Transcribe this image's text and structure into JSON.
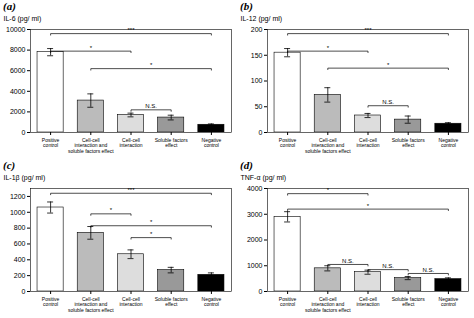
{
  "chart_data": [
    {
      "type": "bar",
      "title": "(a)",
      "ylabel": "IL-6 (pg/ ml)",
      "categories": [
        "Positive\ncontrol",
        "Cell-cell\ninteraction and\nsoluble factors effect",
        "Cell-cell\ninteraction",
        "Soluble factors\neffect",
        "Negative\ncontrol"
      ],
      "values": [
        7800,
        3100,
        1700,
        1450,
        750
      ],
      "errors": [
        350,
        650,
        180,
        230,
        80
      ],
      "colors": [
        "white",
        "#bbbbbb",
        "#dddddd",
        "#999999",
        "black"
      ],
      "ylim": [
        0,
        10000
      ],
      "yticks": [
        0,
        2000,
        4000,
        6000,
        8000,
        10000
      ],
      "grid": false,
      "annotations": [
        {
          "text": "***",
          "y": 9600,
          "from": "Positive\ncontrol",
          "to": "Negative\ncontrol"
        },
        {
          "text": "*",
          "y": 7900,
          "from": "Positive\ncontrol",
          "to": "Cell-cell\ninteraction"
        },
        {
          "text": "N.S.",
          "y": 2200,
          "from": "Cell-cell\ninteraction",
          "to": "Soluble factors\neffect"
        },
        {
          "text": "*",
          "y": 6200,
          "from": "Cell-cell\ninteraction and\nsoluble factors effect",
          "to": "Negative\ncontrol"
        }
      ]
    },
    {
      "type": "bar",
      "title": "(b)",
      "ylabel": "IL-12 (pg/ ml)",
      "categories": [
        "Positive\ncontrol",
        "Cell-cell\ninteraction and\nsoluble factors effect",
        "Cell-cell\ninteraction",
        "Soluble factors\neffect",
        "Negative\ncontrol"
      ],
      "values": [
        155,
        73,
        33,
        25,
        17
      ],
      "errors": [
        8,
        14,
        4,
        7,
        2
      ],
      "colors": [
        "white",
        "#bbbbbb",
        "#dddddd",
        "#999999",
        "black"
      ],
      "ylim": [
        0,
        200
      ],
      "yticks": [
        0,
        50,
        100,
        150,
        200
      ],
      "grid": false,
      "annotations": [
        {
          "text": "***",
          "y": 192,
          "from": "Positive\ncontrol",
          "to": "Negative\ncontrol"
        },
        {
          "text": "*",
          "y": 158,
          "from": "Positive\ncontrol",
          "to": "Cell-cell\ninteraction"
        },
        {
          "text": "N.S.",
          "y": 52,
          "from": "Cell-cell\ninteraction",
          "to": "Soluble factors\neffect"
        },
        {
          "text": "*",
          "y": 125,
          "from": "Cell-cell\ninteraction and\nsoluble factors effect",
          "to": "Negative\ncontrol"
        }
      ]
    },
    {
      "type": "bar",
      "title": "(c)",
      "ylabel": "IL-1β (pg/ ml)",
      "categories": [
        "Positive\ncontrol",
        "Cell-cell\ninteraction and\nsoluble factors effect",
        "Cell-cell\ninteraction",
        "Soluble factors\neffect",
        "Negative\ncontrol"
      ],
      "values": [
        1060,
        740,
        470,
        270,
        210
      ],
      "errors": [
        70,
        80,
        55,
        35,
        25
      ],
      "colors": [
        "white",
        "#bbbbbb",
        "#dddddd",
        "#999999",
        "black"
      ],
      "ylim": [
        0,
        1300
      ],
      "yticks": [
        0,
        200,
        400,
        600,
        800,
        1000,
        1200
      ],
      "grid": false,
      "annotations": [
        {
          "text": "***",
          "y": 1240,
          "from": "Positive\ncontrol",
          "to": "Negative\ncontrol"
        },
        {
          "text": "*",
          "y": 980,
          "from": "Cell-cell\ninteraction and\nsoluble factors effect",
          "to": "Cell-cell\ninteraction"
        },
        {
          "text": "*",
          "y": 680,
          "from": "Cell-cell\ninteraction",
          "to": "Soluble factors\neffect"
        },
        {
          "text": "*",
          "y": 830,
          "from": "Cell-cell\ninteraction and\nsoluble factors effect",
          "to": "Negative\ncontrol"
        }
      ]
    },
    {
      "type": "bar",
      "title": "(d)",
      "ylabel": "TNF-α (pg/ ml)",
      "categories": [
        "Positive\ncontrol",
        "Cell-cell\ninteraction and\nsoluble factors effect",
        "Cell-cell\ninteraction",
        "Soluble factors\neffect",
        "Negative\ncontrol"
      ],
      "values": [
        2900,
        900,
        750,
        520,
        480
      ],
      "errors": [
        200,
        100,
        80,
        60,
        50
      ],
      "colors": [
        "white",
        "#bbbbbb",
        "#dddddd",
        "#999999",
        "black"
      ],
      "ylim": [
        0,
        4000
      ],
      "yticks": [
        0,
        1000,
        2000,
        3000,
        4000
      ],
      "grid": false,
      "annotations": [
        {
          "text": "*",
          "y": 3800,
          "from": "Positive\ncontrol",
          "to": "Cell-cell\ninteraction"
        },
        {
          "text": "*",
          "y": 3200,
          "from": "Positive\ncontrol",
          "to": "Negative\ncontrol"
        },
        {
          "text": "N.S.",
          "y": 1050,
          "from": "Cell-cell\ninteraction and\nsoluble factors effect",
          "to": "Cell-cell\ninteraction"
        },
        {
          "text": "N.S.",
          "y": 850,
          "from": "Cell-cell\ninteraction",
          "to": "Soluble factors\neffect"
        },
        {
          "text": "N.S.",
          "y": 700,
          "from": "Soluble factors\neffect",
          "to": "Negative\ncontrol"
        }
      ]
    }
  ]
}
